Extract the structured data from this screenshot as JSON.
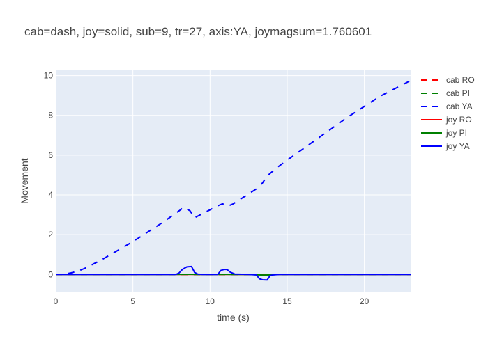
{
  "chart_data": {
    "type": "line",
    "title": "cab=dash, joy=solid, sub=9, tr=27, axis:YA, joymagsum=1.760601",
    "xlabel": "time (s)",
    "ylabel": "Movement",
    "xlim": [
      0,
      23
    ],
    "ylim": [
      -0.9,
      10.3
    ],
    "xticks": [
      0,
      5,
      10,
      15,
      20
    ],
    "yticks": [
      0,
      2,
      4,
      6,
      8,
      10
    ],
    "grid": true,
    "legend_position": "right",
    "series": [
      {
        "name": "cab RO",
        "color": "#ff0000",
        "dash": "dash",
        "x": [
          0,
          23
        ],
        "y": [
          0,
          0
        ]
      },
      {
        "name": "cab PI",
        "color": "#008000",
        "dash": "dash",
        "x": [
          0,
          23
        ],
        "y": [
          0,
          0
        ]
      },
      {
        "name": "cab YA",
        "color": "#0000ff",
        "dash": "dash",
        "x": [
          0,
          0.5,
          1,
          1.5,
          2,
          3,
          4,
          5,
          6,
          7,
          8,
          8.3,
          8.7,
          9,
          9.5,
          10,
          10.5,
          10.8,
          11.2,
          11.5,
          12,
          12.5,
          13,
          13.4,
          13.7,
          14,
          14.3,
          15,
          16,
          17,
          18,
          19,
          20,
          21,
          22,
          23
        ],
        "y": [
          0,
          0,
          0.08,
          0.18,
          0.35,
          0.75,
          1.2,
          1.65,
          2.15,
          2.65,
          3.2,
          3.38,
          3.2,
          2.85,
          3.05,
          3.25,
          3.45,
          3.55,
          3.45,
          3.55,
          3.8,
          4.05,
          4.3,
          4.6,
          4.95,
          5.15,
          5.35,
          5.75,
          6.3,
          6.85,
          7.4,
          7.95,
          8.45,
          8.95,
          9.35,
          9.75
        ]
      },
      {
        "name": "joy RO",
        "color": "#ff0000",
        "dash": "solid",
        "x": [
          0,
          23
        ],
        "y": [
          0,
          0
        ]
      },
      {
        "name": "joy PI",
        "color": "#008000",
        "dash": "solid",
        "x": [
          0,
          7.7,
          8.2,
          8.8,
          9.2,
          10.4,
          10.9,
          11.4,
          12.5,
          13.1,
          13.5,
          13.9,
          14.5,
          23
        ],
        "y": [
          0,
          0,
          0.01,
          0.01,
          0,
          0,
          0.01,
          0,
          0,
          -0.02,
          -0.03,
          -0.02,
          0,
          0
        ]
      },
      {
        "name": "joy YA",
        "color": "#0000ff",
        "dash": "solid",
        "x": [
          0,
          5,
          7.8,
          8.0,
          8.2,
          8.5,
          8.8,
          9.0,
          9.2,
          9.5,
          10.0,
          10.5,
          10.7,
          10.9,
          11.1,
          11.3,
          11.6,
          12.5,
          13.0,
          13.2,
          13.4,
          13.7,
          13.9,
          14.1,
          14.5,
          23
        ],
        "y": [
          0,
          0,
          0,
          0.08,
          0.25,
          0.38,
          0.4,
          0.1,
          0.02,
          0,
          0,
          0,
          0.2,
          0.25,
          0.25,
          0.12,
          0.02,
          0,
          -0.02,
          -0.22,
          -0.27,
          -0.28,
          -0.05,
          -0.02,
          0,
          0
        ]
      }
    ]
  }
}
